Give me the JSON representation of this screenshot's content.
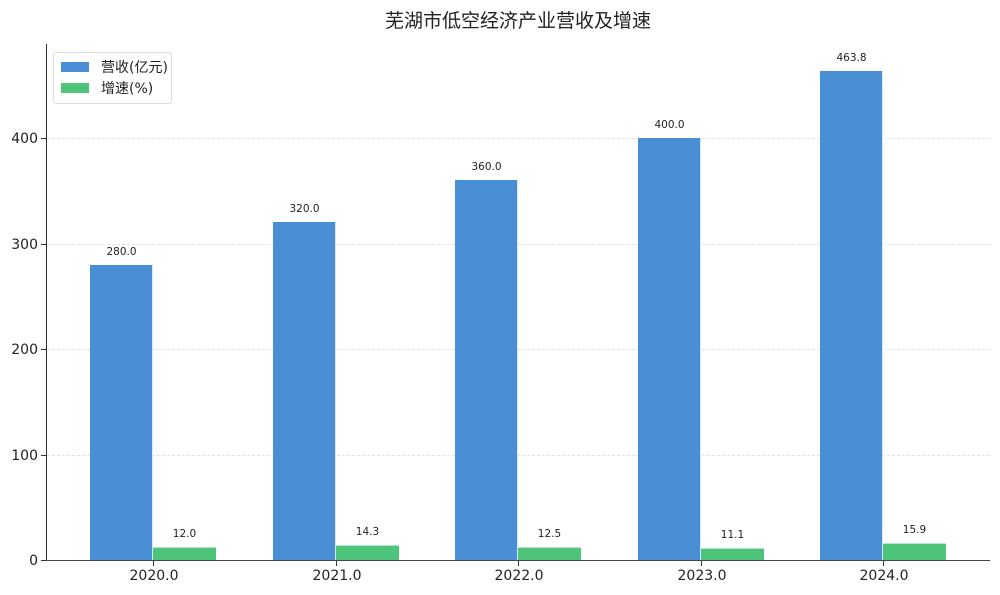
{
  "chart_data": {
    "type": "bar",
    "title": "芜湖市低空经济产业营收及增速",
    "xlabel": "",
    "ylabel": "",
    "categories": [
      "2020.0",
      "2021.0",
      "2022.0",
      "2023.0",
      "2024.0"
    ],
    "series": [
      {
        "name": "营收(亿元)",
        "color": "#4a8fd6",
        "values": [
          280.0,
          320.0,
          360.0,
          400.0,
          463.8
        ]
      },
      {
        "name": "增速(%)",
        "color": "#4dc479",
        "values": [
          12.0,
          14.3,
          12.5,
          11.1,
          15.9
        ]
      }
    ],
    "data_labels": {
      "revenue": [
        "280.0",
        "320.0",
        "360.0",
        "400.0",
        "463.8"
      ],
      "growth": [
        "12.0",
        "14.3",
        "12.5",
        "11.1",
        "15.9"
      ]
    },
    "y_ticks": [
      "0",
      "100",
      "200",
      "300",
      "400"
    ],
    "ylim": [
      0,
      488
    ],
    "grid": "horizontal dashed",
    "legend_position": "upper left"
  }
}
